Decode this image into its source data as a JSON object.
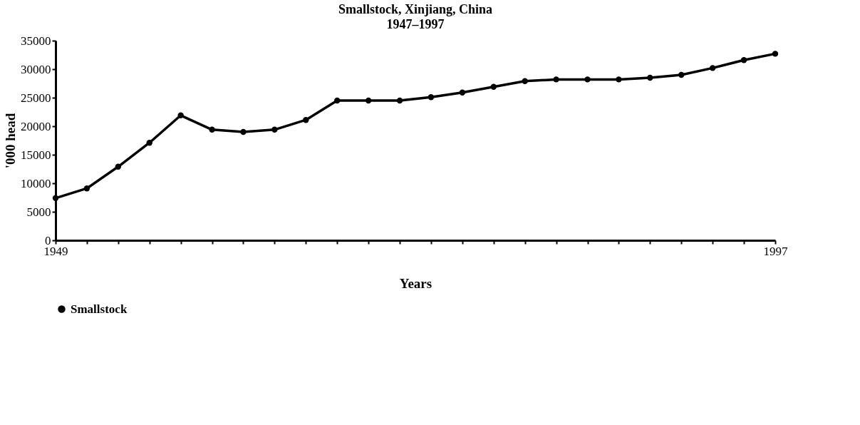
{
  "chart_data": {
    "type": "line",
    "title": "Smallstock, Xinjiang, China",
    "subtitle": "1947–1997",
    "xlabel": "Years",
    "ylabel": "'000 head",
    "categories": [
      "1949",
      null,
      null,
      null,
      null,
      null,
      null,
      null,
      null,
      null,
      null,
      null,
      null,
      null,
      null,
      null,
      null,
      null,
      null,
      null,
      null,
      null,
      null,
      "1997"
    ],
    "series": [
      {
        "name": "Smallstock",
        "color": "#000000",
        "values": [
          7400,
          9100,
          12900,
          17100,
          21900,
          19400,
          19000,
          19400,
          21100,
          24500,
          24500,
          24500,
          25100,
          25900,
          26900,
          27900,
          28200,
          28200,
          28200,
          28500,
          29000,
          30200,
          31600,
          32700
        ]
      }
    ],
    "ylim": [
      0,
      35000
    ],
    "yticks": [
      0,
      5000,
      10000,
      15000,
      20000,
      25000,
      30000,
      35000
    ],
    "grid": false,
    "legend": "bottom",
    "marker": "circle",
    "line_style": "solid"
  }
}
